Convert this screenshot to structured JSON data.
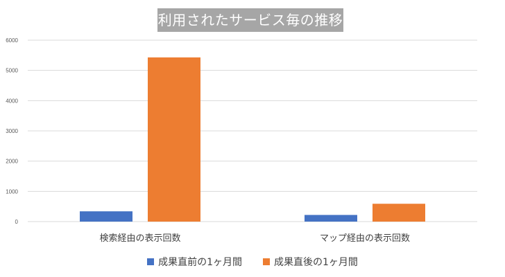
{
  "chart_data": {
    "type": "bar",
    "title": "利用されたサービス毎の推移",
    "categories": [
      "検索経由の表示回数",
      "マップ経由の表示回数"
    ],
    "series": [
      {
        "name": "成果直前の1ヶ月間",
        "color": "#4472c4",
        "values": [
          340,
          220
        ]
      },
      {
        "name": "成果直後の1ヶ月間",
        "color": "#ed7d31",
        "values": [
          5430,
          590
        ]
      }
    ],
    "y_ticks": [
      "0",
      "1000",
      "2000",
      "3000",
      "4000",
      "5000",
      "6000"
    ],
    "ylim": [
      0,
      6000
    ],
    "grid": true,
    "legend_position": "bottom",
    "xlabel": "",
    "ylabel": ""
  }
}
